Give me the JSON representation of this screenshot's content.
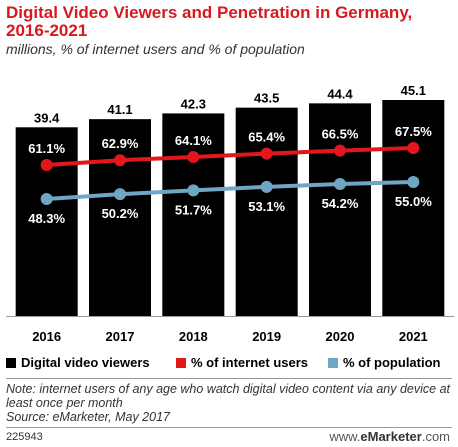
{
  "title": "Digital Video Viewers and Penetration in Germany, 2016-2021",
  "subtitle": "millions, % of internet users and % of population",
  "colors": {
    "title": "#d71920",
    "bars": "#000000",
    "internet_line": "#e3161b",
    "population_line": "#6fa6c3"
  },
  "chart_data": {
    "type": "bar",
    "categories": [
      "2016",
      "2017",
      "2018",
      "2019",
      "2020",
      "2021"
    ],
    "series": [
      {
        "name": "Digital video viewers",
        "type": "bar",
        "values": [
          39.4,
          41.1,
          42.3,
          43.5,
          44.4,
          45.1
        ],
        "labels": [
          "39.4",
          "41.1",
          "42.3",
          "43.5",
          "44.4",
          "45.1"
        ]
      },
      {
        "name": "% of internet users",
        "type": "line",
        "values": [
          61.1,
          62.9,
          64.1,
          65.4,
          66.5,
          67.5
        ],
        "labels": [
          "61.1%",
          "62.9%",
          "64.1%",
          "65.4%",
          "66.5%",
          "67.5%"
        ]
      },
      {
        "name": "% of population",
        "type": "line",
        "values": [
          48.3,
          50.2,
          51.7,
          53.1,
          54.2,
          55.0
        ],
        "labels": [
          "48.3%",
          "50.2%",
          "51.7%",
          "53.1%",
          "54.2%",
          "55.0%"
        ]
      }
    ],
    "legend_position": "bottom"
  },
  "legend": {
    "viewers": "Digital video viewers",
    "internet": "% of internet users",
    "population": "% of population"
  },
  "note": "Note: internet users of any age who watch digital video content via any device at least once per month",
  "source": "Source: eMarketer, May 2017",
  "chart_id": "225943",
  "brand": {
    "prefix": "www.",
    "name": "eMarketer",
    "suffix": ".com"
  }
}
